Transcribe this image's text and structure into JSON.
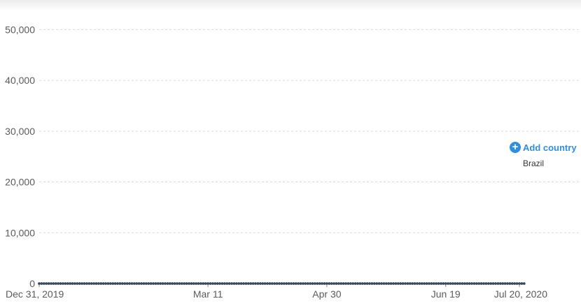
{
  "chart_data": {
    "type": "line",
    "title": "",
    "xlabel": "",
    "ylabel": "",
    "x_range": [
      "2019-12-31",
      "2020-07-20"
    ],
    "ylim": [
      0,
      55000
    ],
    "grid": {
      "horizontal": true,
      "vertical": false
    },
    "yticks": [
      {
        "value": 0,
        "label": "0"
      },
      {
        "value": 10000,
        "label": "10,000"
      },
      {
        "value": 20000,
        "label": "20,000"
      },
      {
        "value": 30000,
        "label": "30,000"
      },
      {
        "value": 40000,
        "label": "40,000"
      },
      {
        "value": 50000,
        "label": "50,000"
      }
    ],
    "xticks": [
      {
        "date": "2019-12-31",
        "label": "Dec 31, 2019"
      },
      {
        "date": "2020-03-11",
        "label": "Mar 11"
      },
      {
        "date": "2020-04-30",
        "label": "Apr 30"
      },
      {
        "date": "2020-06-19",
        "label": "Jun 19"
      },
      {
        "date": "2020-07-20",
        "label": "Jul 20, 2020"
      }
    ],
    "series": [
      {
        "name": "Brazil",
        "color": "#3a4a5e",
        "start_date": "2019-12-31",
        "values": [
          0,
          0,
          0,
          0,
          0,
          0,
          0,
          0,
          0,
          0,
          0,
          0,
          0,
          0,
          0,
          0,
          0,
          0,
          0,
          0,
          0,
          0,
          0,
          0,
          0,
          0,
          0,
          0,
          0,
          0,
          0,
          0,
          0,
          0,
          0,
          0,
          0,
          0,
          0,
          0,
          0,
          0,
          0,
          0,
          0,
          0,
          0,
          0,
          0,
          0,
          0,
          0,
          0,
          0,
          0,
          0,
          0,
          0,
          0,
          0,
          0,
          0,
          0,
          0,
          0,
          0,
          0,
          0,
          0,
          0,
          0,
          0,
          0,
          0,
          0,
          0,
          0,
          0,
          0,
          0,
          0,
          0,
          0,
          0,
          0,
          0,
          0,
          0,
          0,
          0,
          0,
          0,
          0,
          0,
          0,
          0,
          0,
          0,
          0,
          0,
          0,
          0,
          0,
          0,
          0,
          0,
          0,
          0,
          0,
          0,
          0,
          0,
          0,
          0,
          0,
          0,
          0,
          0,
          0,
          0,
          0,
          0,
          0,
          0,
          0,
          0,
          0,
          0,
          0,
          0,
          0,
          0,
          0,
          0,
          0,
          0,
          0,
          0,
          0,
          0,
          0,
          0,
          0,
          0,
          0,
          0,
          0,
          0,
          0,
          0,
          0,
          0,
          0,
          0,
          0,
          0,
          0,
          0,
          0,
          0,
          0,
          0,
          0,
          0,
          0,
          0,
          0,
          0,
          0,
          0,
          0,
          0,
          0,
          0,
          0,
          0,
          0,
          0,
          0,
          0,
          0,
          0,
          0,
          0,
          0,
          0,
          0,
          0,
          0,
          0,
          0,
          0,
          0,
          0,
          0,
          0,
          0,
          0,
          0,
          0,
          0,
          0,
          0,
          0,
          0
        ]
      }
    ]
  },
  "legend": {
    "add_country_label": "Add country",
    "add_icon": "plus-circle-icon",
    "accent_color": "#2e8de6"
  }
}
